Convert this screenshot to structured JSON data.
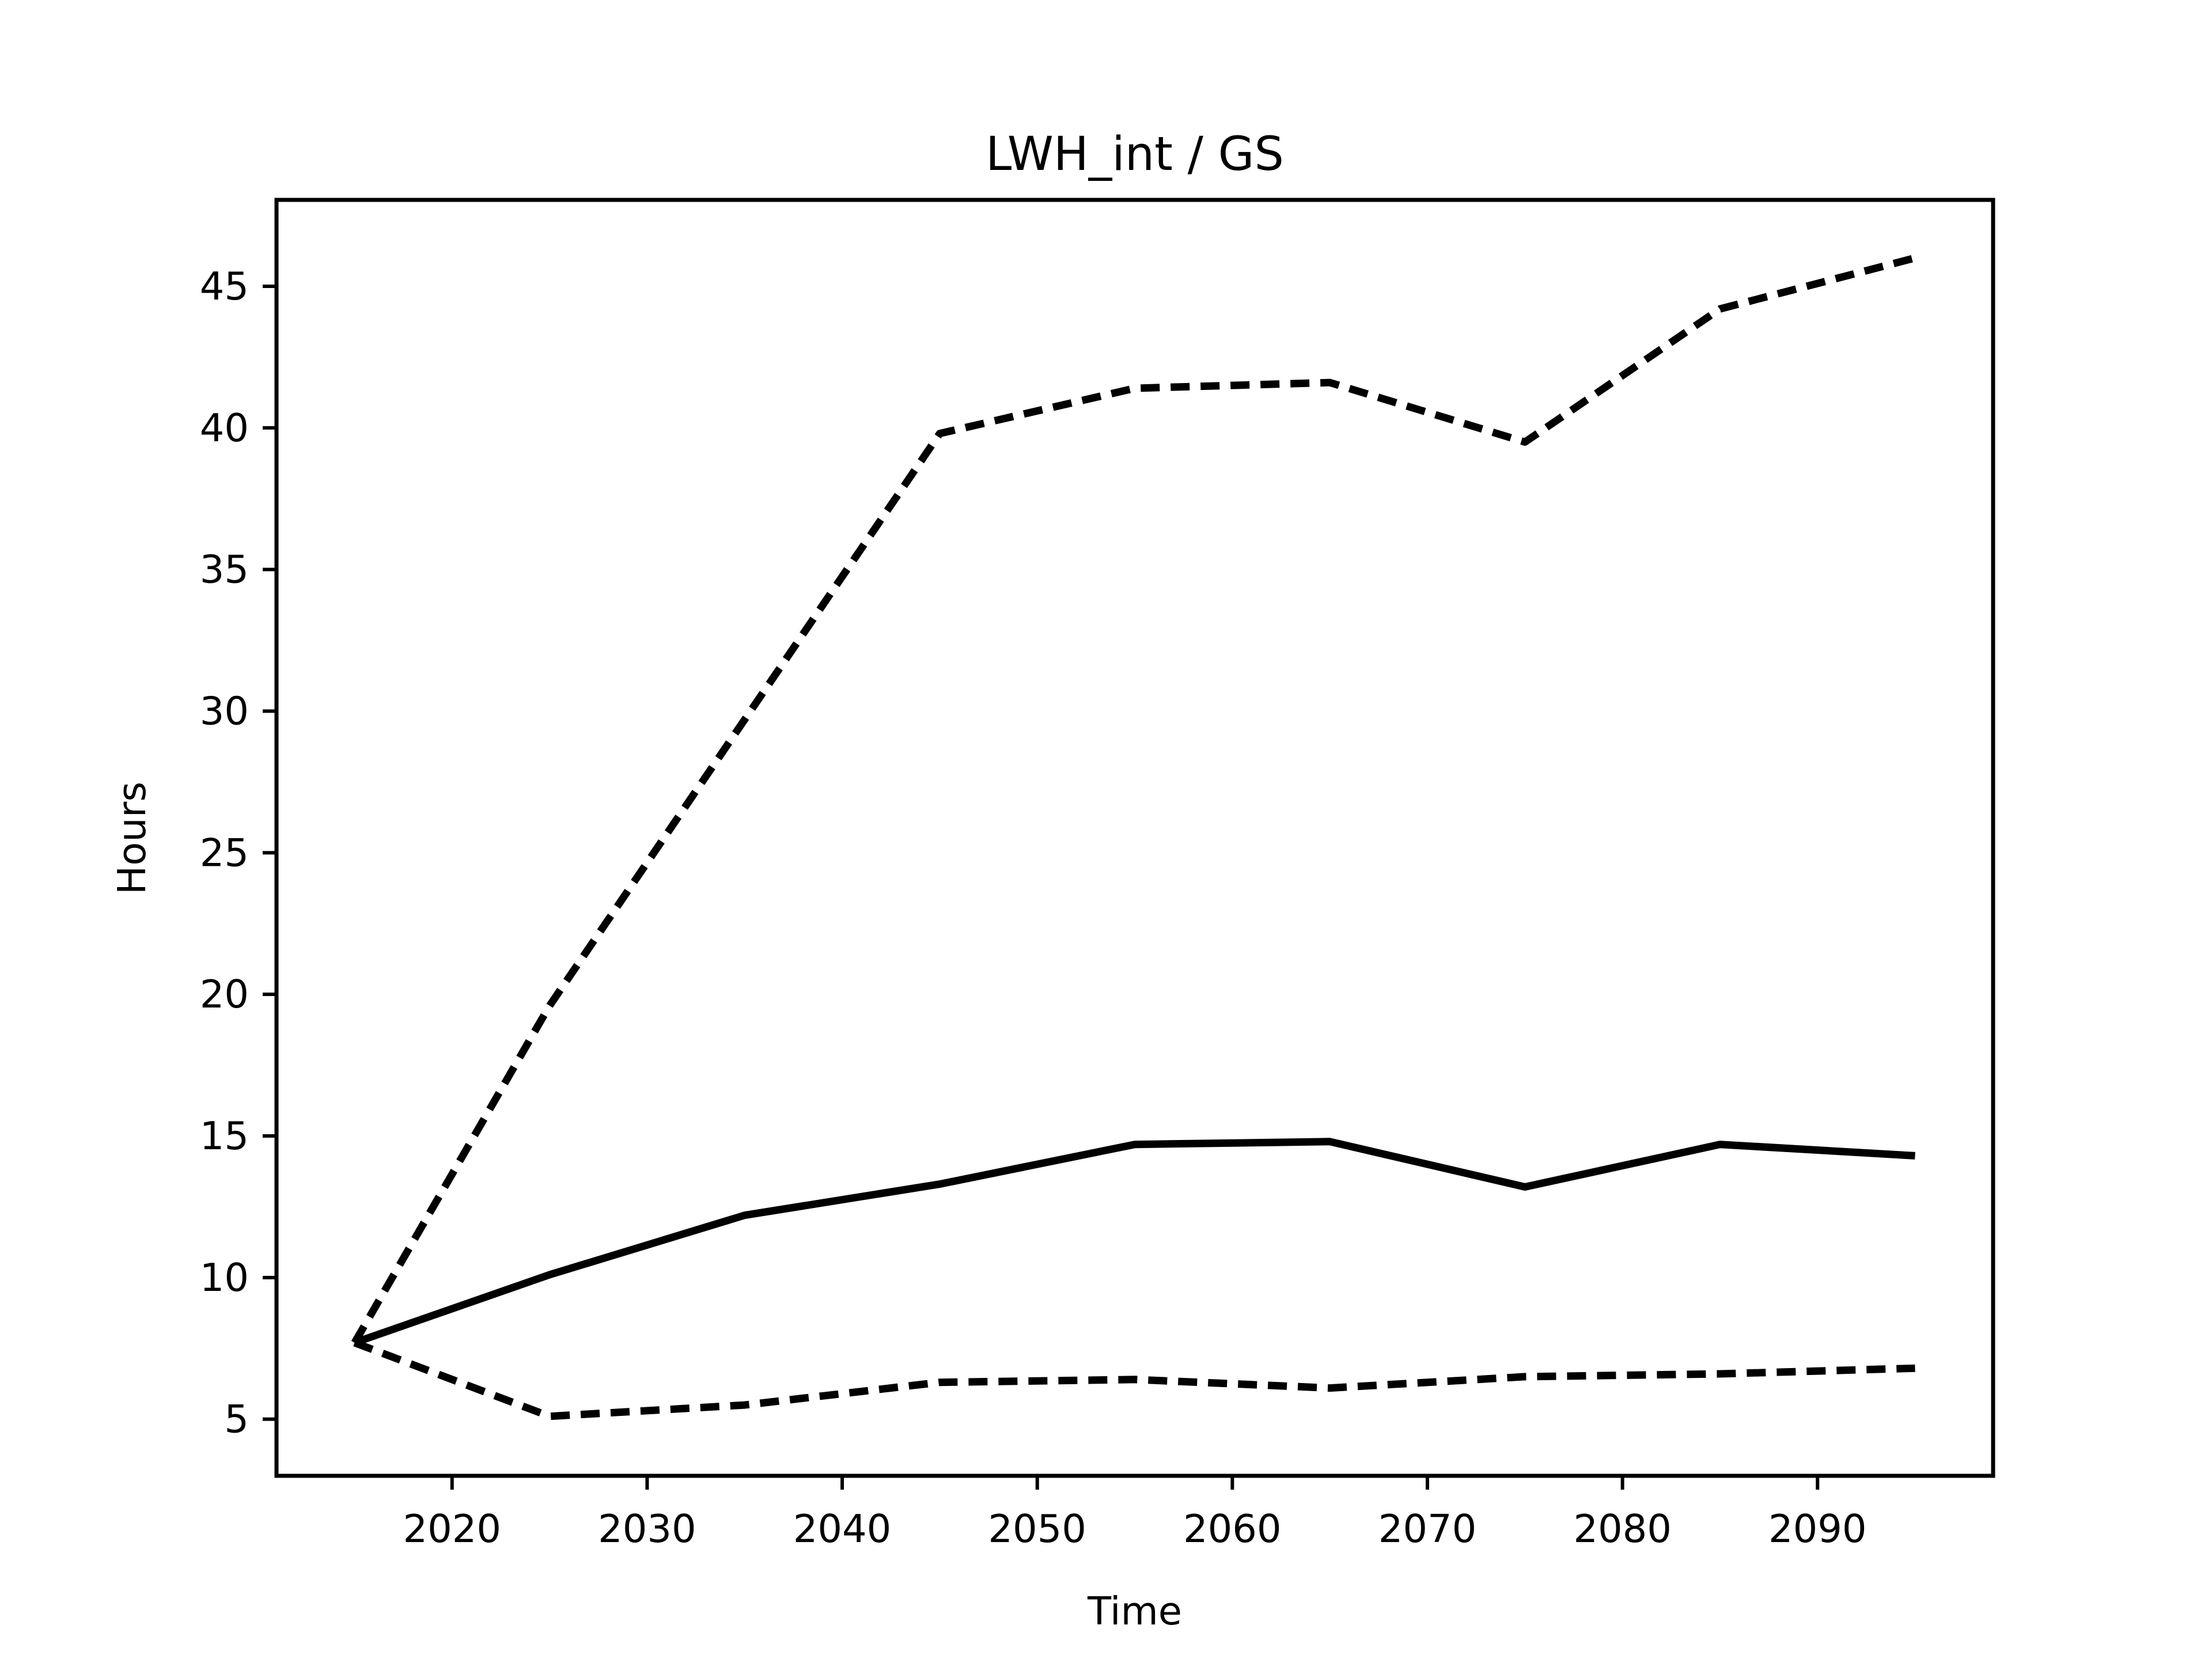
{
  "chart_data": {
    "type": "line",
    "title": "LWH_int / GS",
    "xlabel": "Time",
    "ylabel": "Hours",
    "x": [
      2015,
      2025,
      2035,
      2045,
      2055,
      2065,
      2075,
      2085,
      2095
    ],
    "series": [
      {
        "name": "upper-dashed",
        "style": "dashed",
        "color": "#000000",
        "values": [
          7.7,
          19.6,
          29.7,
          39.8,
          41.4,
          41.6,
          39.5,
          44.2,
          46.0
        ]
      },
      {
        "name": "solid",
        "style": "solid",
        "color": "#000000",
        "values": [
          7.7,
          10.1,
          12.2,
          13.3,
          14.7,
          14.8,
          13.2,
          14.7,
          14.3
        ]
      },
      {
        "name": "lower-dashed",
        "style": "dashed",
        "color": "#000000",
        "values": [
          7.7,
          5.1,
          5.5,
          6.3,
          6.4,
          6.1,
          6.5,
          6.6,
          6.8
        ]
      }
    ],
    "xticks": [
      2020,
      2030,
      2040,
      2050,
      2060,
      2070,
      2080,
      2090
    ],
    "yticks": [
      5,
      10,
      15,
      20,
      25,
      30,
      35,
      40,
      45
    ],
    "xlim": [
      2011,
      2099
    ],
    "ylim": [
      3.0,
      48.05
    ],
    "grid": false,
    "legend": false,
    "background": "#ffffff",
    "text_color": "#000000",
    "line_color": "#000000"
  }
}
